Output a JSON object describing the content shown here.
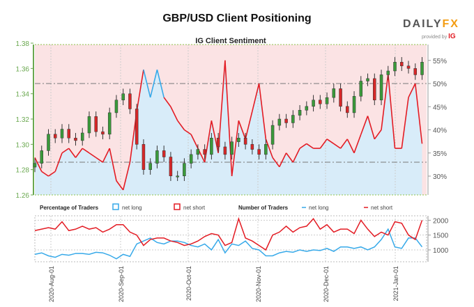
{
  "header": {
    "title": "GBP/USD Client Positioning",
    "logo_left": "DAILY",
    "logo_right": "FX",
    "provided_by": "provided by",
    "provider": "IG"
  },
  "chart_data": [
    {
      "type": "candlestick+area",
      "title": "IG Client Sentiment",
      "x_start": "2020-07-25",
      "step_days": 3,
      "ylim_price": [
        1.26,
        1.38
      ],
      "yticks_price": [
        "1.26",
        "1.28",
        "1.30",
        "1.32",
        "1.34",
        "1.36",
        "1.38"
      ],
      "ylim_pct": [
        25,
        57
      ],
      "yticks_pct": [
        "30%",
        "35%",
        "40%",
        "45%",
        "50%",
        "55%"
      ],
      "reference_lines_pct": [
        50,
        33
      ],
      "close": [
        1.285,
        1.295,
        1.308,
        1.305,
        1.312,
        1.305,
        1.303,
        1.309,
        1.322,
        1.31,
        1.308,
        1.325,
        1.335,
        1.34,
        1.328,
        1.3,
        1.28,
        1.285,
        1.295,
        1.29,
        1.275,
        1.275,
        1.285,
        1.292,
        1.296,
        1.292,
        1.305,
        1.298,
        1.292,
        1.302,
        1.305,
        1.3,
        1.296,
        1.292,
        1.3,
        1.315,
        1.32,
        1.317,
        1.323,
        1.327,
        1.33,
        1.335,
        1.332,
        1.337,
        1.344,
        1.33,
        1.325,
        1.338,
        1.35,
        1.352,
        1.335,
        1.355,
        1.358,
        1.365,
        1.362,
        1.36,
        1.355,
        1.365
      ],
      "pct_long": [
        34,
        31,
        30,
        31,
        35,
        36,
        34,
        36,
        35,
        34,
        33,
        36,
        29,
        27,
        33,
        44,
        53,
        47,
        53,
        47,
        45,
        42,
        40,
        39,
        36,
        33,
        42,
        35,
        55,
        30,
        42,
        38,
        44,
        50,
        38,
        34,
        32,
        35,
        33,
        36,
        37,
        36,
        36,
        38,
        37,
        36,
        38,
        35,
        39,
        43,
        38,
        40,
        52,
        36,
        36,
        47,
        50,
        37
      ]
    },
    {
      "type": "line",
      "legend_pct_title": "Percentage of Traders",
      "legend_pct_long": "net long",
      "legend_pct_short": "net short",
      "legend_num_title": "Number of Traders",
      "legend_num_long": "net long",
      "legend_num_short": "net short",
      "ylim": [
        600,
        2150
      ],
      "yticks": [
        "1000",
        "1500",
        "2000"
      ],
      "xticks": [
        "2020-Aug-01",
        "2020-Sep-01",
        "2020-Oct-01",
        "2020-Nov-01",
        "2020-Dec-01",
        "2021-Jan-01"
      ],
      "series": [
        {
          "name": "net long",
          "color": "#36a9e9",
          "values": [
            850,
            900,
            800,
            750,
            850,
            820,
            880,
            880,
            850,
            920,
            900,
            820,
            700,
            850,
            780,
            1200,
            1300,
            1400,
            1250,
            1200,
            1300,
            1300,
            1250,
            1150,
            1100,
            1200,
            1000,
            1350,
            900,
            1200,
            1150,
            1300,
            1050,
            1000,
            800,
            800,
            900,
            950,
            920,
            1000,
            950,
            1000,
            980,
            1050,
            950,
            1100,
            1100,
            1050,
            1100,
            1000,
            1100,
            1350,
            1700,
            1100,
            1050,
            1400,
            1400,
            1100
          ]
        },
        {
          "name": "net short",
          "color": "#e31b23",
          "values": [
            1650,
            1700,
            1750,
            1700,
            1950,
            1650,
            1700,
            1800,
            1700,
            1750,
            1600,
            1700,
            1850,
            1850,
            1600,
            1500,
            1150,
            1350,
            1400,
            1400,
            1300,
            1250,
            1150,
            1200,
            1300,
            1450,
            1550,
            1500,
            1150,
            1250,
            2050,
            1400,
            1300,
            1150,
            1000,
            1500,
            1600,
            1800,
            1600,
            1750,
            1800,
            2050,
            1700,
            1850,
            1600,
            1700,
            1700,
            1550,
            2000,
            1700,
            1450,
            1600,
            1500,
            1950,
            1900,
            1500,
            1350,
            2000
          ]
        }
      ]
    }
  ],
  "colors": {
    "long": "#36a9e9",
    "short": "#e31b23",
    "up": "#3a9a3a",
    "down": "#d62728",
    "axis_green": "#6aa84f"
  }
}
